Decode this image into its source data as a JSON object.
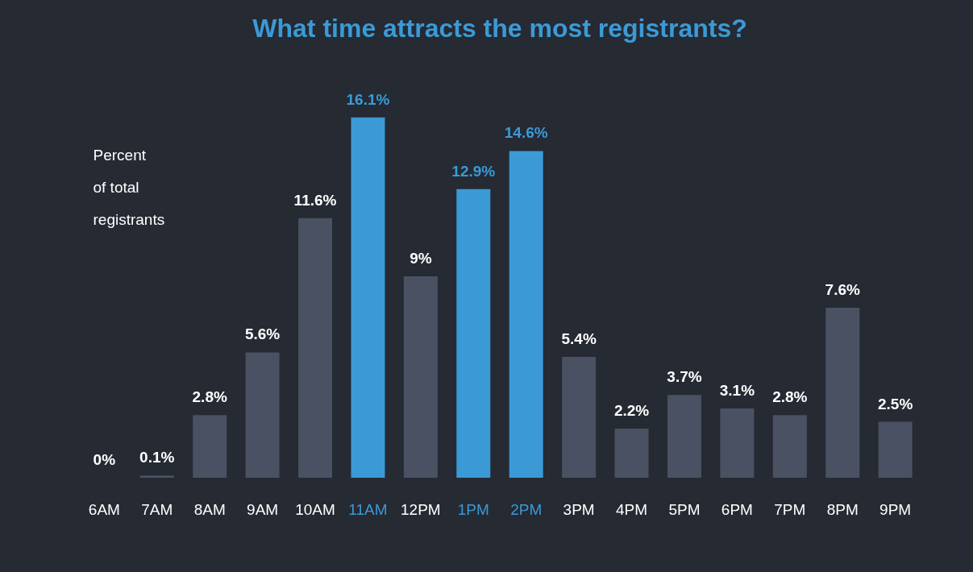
{
  "chart_data": {
    "type": "bar",
    "title": "What time attracts the most registrants?",
    "ylabel": "Percent\nof total\nregistrants",
    "categories": [
      "6AM",
      "7AM",
      "8AM",
      "9AM",
      "10AM",
      "11AM",
      "12PM",
      "1PM",
      "2PM",
      "3PM",
      "4PM",
      "5PM",
      "6PM",
      "7PM",
      "8PM",
      "9PM"
    ],
    "values": [
      0,
      0.1,
      2.8,
      5.6,
      11.6,
      16.1,
      9,
      12.9,
      14.6,
      5.4,
      2.2,
      3.7,
      3.1,
      2.8,
      7.6,
      2.5
    ],
    "colors": [
      "#4a5162",
      "#4a5162",
      "#4a5162",
      "#4a5162",
      "#4a5162",
      "#3b9ad6",
      "#4a5162",
      "#3b9ad6",
      "#3b9ad6",
      "#4a5162",
      "#4a5162",
      "#4a5162",
      "#4a5162",
      "#4a5162",
      "#4a5162",
      "#4a5162"
    ],
    "value_labels": [
      "0%",
      "0.1%",
      "2.8%",
      "5.6%",
      "11.6%",
      "16.1%",
      "9%",
      "12.9%",
      "14.6%",
      "5.4%",
      "2.2%",
      "3.7%",
      "3.1%",
      "2.8%",
      "7.6%",
      "2.5%"
    ],
    "data_labels": true
  }
}
